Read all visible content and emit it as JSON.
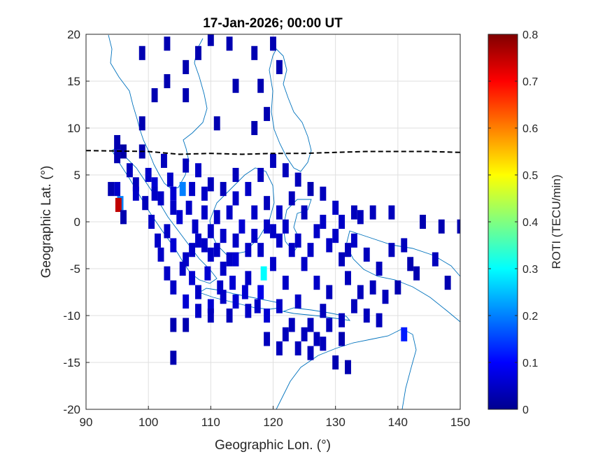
{
  "chart_data": {
    "type": "heatmap",
    "title": "17-Jan-2026; 00:00 UT",
    "xlabel": "Geographic Lon. (°)",
    "ylabel": "Geographic Lat. (°)",
    "xlim": [
      90,
      150
    ],
    "ylim": [
      -20,
      20
    ],
    "xticks": [
      "90",
      "100",
      "110",
      "120",
      "130",
      "140",
      "150"
    ],
    "yticks": [
      "20",
      "15",
      "10",
      "5",
      "0",
      "-5",
      "-10",
      "-15",
      "-20"
    ],
    "grid": true,
    "colorbar": {
      "label": "ROTI (TECU/min)",
      "range": [
        0,
        0.8
      ],
      "ticks": [
        "0.8",
        "0.7",
        "0.6",
        "0.5",
        "0.4",
        "0.3",
        "0.2",
        "0.1",
        "0"
      ]
    },
    "cell_size_deg": [
      1,
      1.5
    ],
    "magnetic_equator": [
      [
        90,
        7.6
      ],
      [
        100,
        7.5
      ],
      [
        105,
        7.2
      ],
      [
        110,
        7.3
      ],
      [
        115,
        7.2
      ],
      [
        120,
        7.3
      ],
      [
        125,
        7.3
      ],
      [
        130,
        7.4
      ],
      [
        135,
        7.5
      ],
      [
        140,
        7.5
      ],
      [
        145,
        7.5
      ],
      [
        150,
        7.4
      ]
    ],
    "cells": [
      [
        95,
        8.5,
        0.03
      ],
      [
        95,
        7.0,
        0.03
      ],
      [
        96,
        7.5,
        0.02
      ],
      [
        95.5,
        2.0,
        0.2
      ],
      [
        95.2,
        1.8,
        0.75
      ],
      [
        95,
        3.5,
        0.05
      ],
      [
        94,
        3.5,
        0.03
      ],
      [
        96,
        0.5,
        0.03
      ],
      [
        99,
        7.5,
        0.03
      ],
      [
        99,
        10.5,
        0.03
      ],
      [
        98,
        4.0,
        0.04
      ],
      [
        100,
        5.0,
        0.05
      ],
      [
        101,
        4.0,
        0.06
      ],
      [
        102,
        2.5,
        0.05
      ],
      [
        105.5,
        3.5,
        0.2
      ],
      [
        104,
        1.5,
        0.05
      ],
      [
        105,
        0.5,
        0.06
      ],
      [
        103,
        -1.0,
        0.05
      ],
      [
        104,
        -2.5,
        0.06
      ],
      [
        106,
        -4.0,
        0.05
      ],
      [
        107,
        -6.0,
        0.06
      ],
      [
        108,
        -7.5,
        0.05
      ],
      [
        110,
        -9.0,
        0.06
      ],
      [
        112,
        -8.0,
        0.05
      ],
      [
        114,
        -8.5,
        0.06
      ],
      [
        116,
        -9.5,
        0.05
      ],
      [
        118,
        -7.5,
        0.08
      ],
      [
        118.5,
        -5.5,
        0.3
      ],
      [
        119,
        -10.0,
        0.06
      ],
      [
        121,
        -9.0,
        0.05
      ],
      [
        122,
        -12.0,
        0.04
      ],
      [
        124,
        -13.5,
        0.04
      ],
      [
        126,
        -14.0,
        0.04
      ],
      [
        128,
        -13.0,
        0.04
      ],
      [
        130,
        -15.0,
        0.03
      ],
      [
        132,
        -15.5,
        0.03
      ],
      [
        131,
        -10.5,
        0.04
      ],
      [
        133,
        -9.0,
        0.04
      ],
      [
        135,
        -10.0,
        0.04
      ],
      [
        137,
        -10.5,
        0.04
      ],
      [
        141,
        -12.0,
        0.12
      ],
      [
        140,
        -7.0,
        0.03
      ],
      [
        143,
        -5.5,
        0.03
      ],
      [
        146,
        -4.0,
        0.04
      ],
      [
        148,
        -6.5,
        0.03
      ],
      [
        147,
        -0.5,
        0.03
      ],
      [
        150,
        -0.5,
        0.03
      ],
      [
        144,
        0.0,
        0.03
      ],
      [
        139,
        1.0,
        0.04
      ],
      [
        136,
        1.0,
        0.04
      ],
      [
        133,
        1.0,
        0.04
      ],
      [
        130,
        1.5,
        0.05
      ],
      [
        128,
        3.0,
        0.04
      ],
      [
        126,
        3.5,
        0.03
      ],
      [
        124,
        4.5,
        0.04
      ],
      [
        122,
        5.5,
        0.04
      ],
      [
        120,
        6.5,
        0.04
      ],
      [
        118,
        5.0,
        0.04
      ],
      [
        116,
        3.5,
        0.05
      ],
      [
        114,
        5.0,
        0.04
      ],
      [
        112,
        3.5,
        0.04
      ],
      [
        110,
        4.0,
        0.04
      ],
      [
        108,
        5.5,
        0.05
      ],
      [
        106,
        6.0,
        0.04
      ],
      [
        109,
        1.0,
        0.05
      ],
      [
        111,
        0.5,
        0.05
      ],
      [
        113,
        1.0,
        0.05
      ],
      [
        115,
        -0.5,
        0.06
      ],
      [
        117,
        -1.5,
        0.05
      ],
      [
        119,
        -0.5,
        0.05
      ],
      [
        121,
        -2.0,
        0.05
      ],
      [
        123,
        -3.0,
        0.05
      ],
      [
        125,
        -4.5,
        0.05
      ],
      [
        127,
        -1.0,
        0.05
      ],
      [
        129,
        -2.5,
        0.05
      ],
      [
        131,
        -4.0,
        0.04
      ],
      [
        133,
        -2.0,
        0.05
      ],
      [
        135,
        -3.5,
        0.04
      ],
      [
        137,
        -5.0,
        0.04
      ],
      [
        108,
        -2.0,
        0.05
      ],
      [
        110,
        -3.5,
        0.05
      ],
      [
        112,
        -5.0,
        0.05
      ],
      [
        114,
        -4.0,
        0.06
      ],
      [
        116,
        -6.0,
        0.05
      ],
      [
        110,
        -10.0,
        0.04
      ],
      [
        113,
        -10.0,
        0.04
      ],
      [
        104,
        -11.0,
        0.03
      ],
      [
        106,
        -11.0,
        0.03
      ],
      [
        104,
        -14.5,
        0.03
      ],
      [
        117,
        10.0,
        0.03
      ],
      [
        119,
        11.5,
        0.03
      ],
      [
        121,
        16.5,
        0.03
      ],
      [
        120,
        19.0,
        0.03
      ],
      [
        113,
        19.0,
        0.03
      ],
      [
        117,
        18.0,
        0.03
      ],
      [
        114,
        14.5,
        0.03
      ],
      [
        118,
        14.5,
        0.03
      ],
      [
        103,
        19.0,
        0.03
      ],
      [
        99,
        18.0,
        0.03
      ],
      [
        103,
        15.0,
        0.03
      ],
      [
        106,
        13.5,
        0.03
      ],
      [
        101,
        13.5,
        0.03
      ],
      [
        108,
        18.0,
        0.03
      ],
      [
        106,
        16.5,
        0.03
      ],
      [
        111,
        10.5,
        0.03
      ],
      [
        110,
        19.5,
        0.03
      ],
      [
        99.5,
        2.0,
        0.04
      ],
      [
        100.5,
        0.0,
        0.05
      ],
      [
        101.5,
        -2.0,
        0.05
      ],
      [
        97,
        5.5,
        0.04
      ],
      [
        102.5,
        6.5,
        0.04
      ],
      [
        103.5,
        4.5,
        0.05
      ],
      [
        106.5,
        1.5,
        0.05
      ],
      [
        107.5,
        -0.5,
        0.05
      ],
      [
        105.5,
        -5.0,
        0.05
      ],
      [
        109.5,
        -5.5,
        0.06
      ],
      [
        111.5,
        -7.0,
        0.05
      ],
      [
        113.5,
        -6.5,
        0.06
      ],
      [
        115.5,
        -7.5,
        0.06
      ],
      [
        117.5,
        -9.0,
        0.05
      ],
      [
        120,
        -4.5,
        0.05
      ],
      [
        122,
        -6.5,
        0.05
      ],
      [
        124,
        -8.5,
        0.05
      ],
      [
        126,
        -11.0,
        0.04
      ],
      [
        128,
        -9.5,
        0.04
      ],
      [
        127,
        -6.5,
        0.05
      ],
      [
        129,
        -7.5,
        0.04
      ],
      [
        132,
        -6.0,
        0.04
      ],
      [
        134,
        -7.5,
        0.04
      ],
      [
        136,
        -7.0,
        0.04
      ],
      [
        138,
        -8.0,
        0.04
      ],
      [
        139,
        -3.0,
        0.04
      ],
      [
        141,
        -2.5,
        0.04
      ],
      [
        142,
        -4.5,
        0.03
      ],
      [
        134,
        0.5,
        0.04
      ],
      [
        131,
        0.0,
        0.05
      ],
      [
        125,
        1.0,
        0.04
      ],
      [
        123,
        2.5,
        0.04
      ],
      [
        121,
        1.0,
        0.05
      ],
      [
        119,
        2.0,
        0.04
      ],
      [
        117,
        1.0,
        0.05
      ],
      [
        114,
        2.5,
        0.05
      ],
      [
        112,
        -1.5,
        0.05
      ],
      [
        110,
        -1.0,
        0.05
      ],
      [
        114,
        -2.0,
        0.05
      ],
      [
        116,
        -3.0,
        0.05
      ],
      [
        118,
        -3.0,
        0.05
      ],
      [
        120,
        -1.0,
        0.05
      ],
      [
        122,
        -0.5,
        0.05
      ],
      [
        124,
        -2.0,
        0.05
      ],
      [
        126,
        -3.0,
        0.05
      ],
      [
        128,
        0.0,
        0.05
      ],
      [
        130,
        -1.5,
        0.05
      ],
      [
        132,
        -3.0,
        0.04
      ],
      [
        98,
        3.0,
        0.05
      ],
      [
        102,
        -3.5,
        0.05
      ],
      [
        103,
        -5.5,
        0.05
      ],
      [
        104,
        -7.0,
        0.05
      ],
      [
        106,
        -8.5,
        0.06
      ],
      [
        108,
        -9.5,
        0.05
      ],
      [
        119,
        -12.5,
        0.04
      ],
      [
        121,
        -13.5,
        0.04
      ],
      [
        123,
        -11.0,
        0.04
      ],
      [
        125,
        -12.0,
        0.04
      ],
      [
        127,
        -12.5,
        0.04
      ],
      [
        129,
        -11.0,
        0.04
      ],
      [
        131,
        -12.5,
        0.03
      ],
      [
        107,
        -3.0,
        0.05
      ],
      [
        109,
        -2.5,
        0.05
      ],
      [
        111,
        -3.0,
        0.05
      ],
      [
        113,
        -4.0,
        0.05
      ],
      [
        101,
        3.0,
        0.05
      ],
      [
        104,
        3.0,
        0.06
      ],
      [
        107,
        3.5,
        0.05
      ],
      [
        109,
        3.0,
        0.05
      ]
    ],
    "colormap": [
      "#00008f",
      "#0000ff",
      "#0080ff",
      "#00ffff",
      "#80ff80",
      "#ffff00",
      "#ff8000",
      "#ff0000",
      "#800000"
    ]
  }
}
